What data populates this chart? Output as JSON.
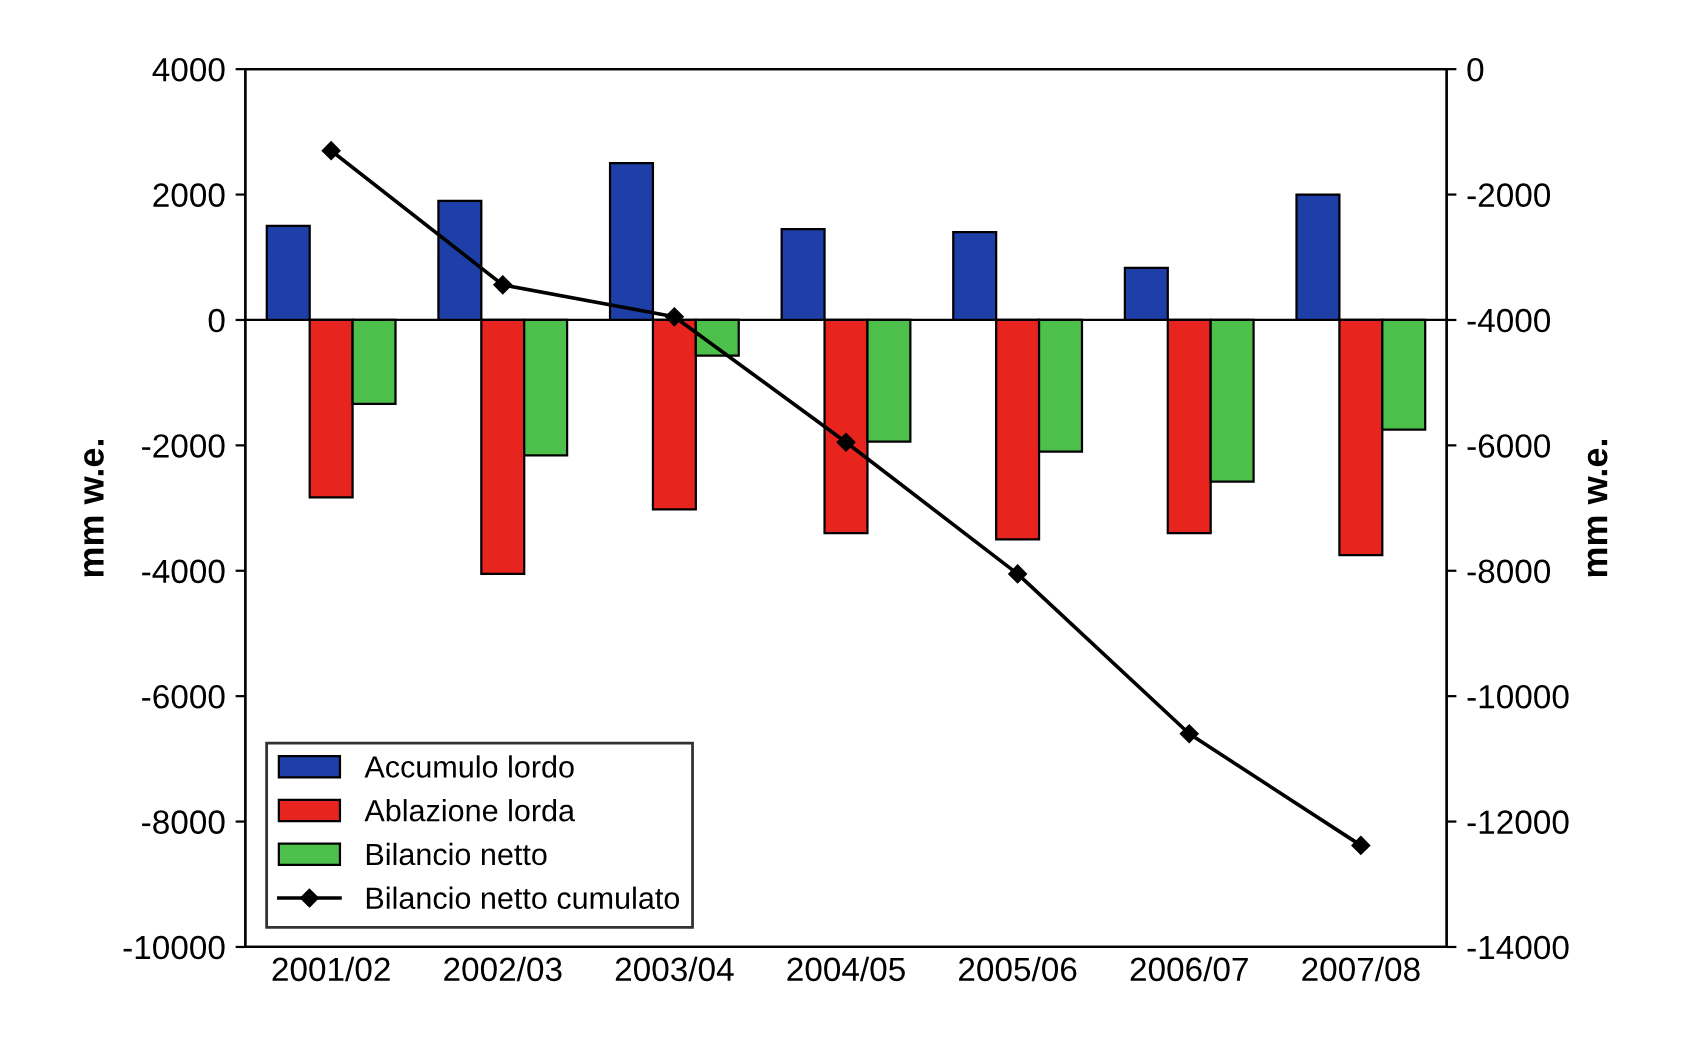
{
  "chart_data": {
    "type": "bar",
    "ylabel": "mm w.e.",
    "y2label": "mm w.e.",
    "categories": [
      "2001/02",
      "2002/03",
      "2003/04",
      "2004/05",
      "2005/06",
      "2006/07",
      "2007/08"
    ],
    "series": [
      {
        "name": "Accumulo lordo",
        "color": "#1f3fa8",
        "values": [
          1500,
          1900,
          2500,
          1450,
          1400,
          830,
          2000
        ]
      },
      {
        "name": "Ablazione lorda",
        "color": "#e8241f",
        "values": [
          -2830,
          -4050,
          -3020,
          -3400,
          -3500,
          -3400,
          -3750
        ]
      },
      {
        "name": "Bilancio netto",
        "color": "#4cc04a",
        "values": [
          -1340,
          -2160,
          -570,
          -1940,
          -2100,
          -2580,
          -1750
        ]
      },
      {
        "name": "Bilancio netto cumulato",
        "color": "#000000",
        "type": "line",
        "axis": "y2",
        "marker": "diamond",
        "values": [
          -1300,
          -3440,
          -3950,
          -5950,
          -8050,
          -10600,
          -12380
        ]
      }
    ],
    "ylim": [
      -10000,
      4000
    ],
    "yticks": [
      -10000,
      -8000,
      -6000,
      -4000,
      -2000,
      0,
      2000,
      4000
    ],
    "y2lim": [
      -14000,
      0
    ],
    "y2ticks": [
      -14000,
      -12000,
      -10000,
      -8000,
      -6000,
      -4000,
      -2000,
      0
    ],
    "legend": "bottom left"
  }
}
